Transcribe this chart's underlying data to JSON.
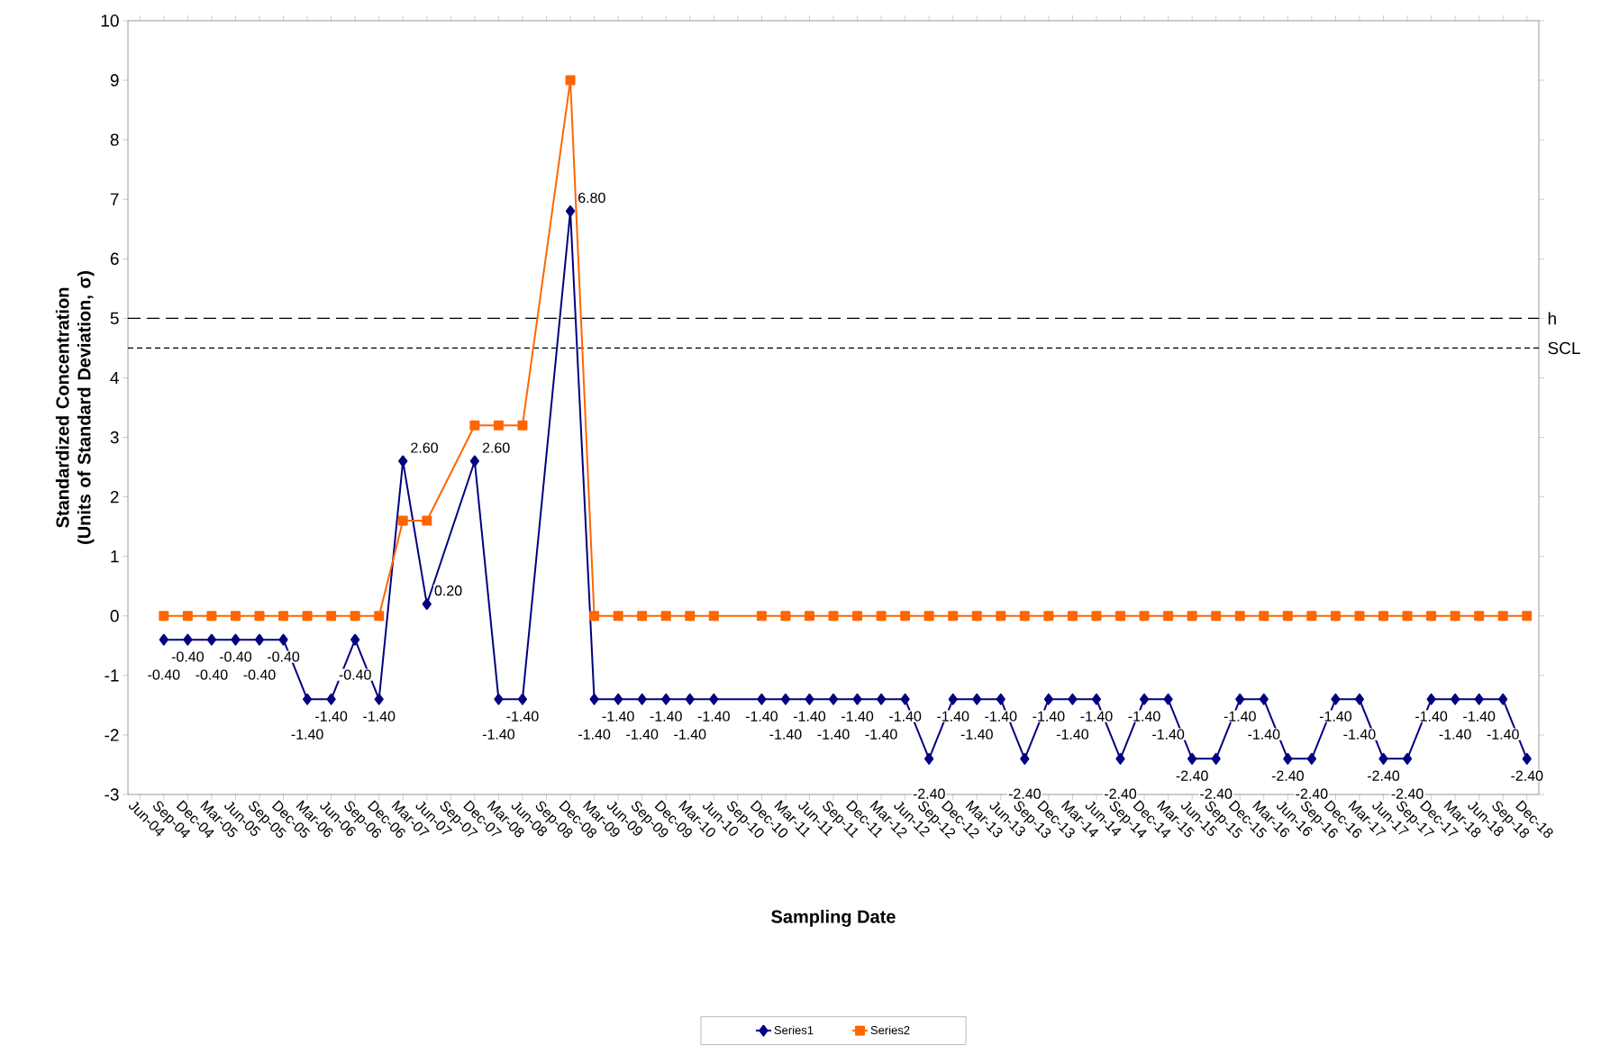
{
  "chart_data": {
    "type": "line",
    "xlabel": "Sampling Date",
    "ylabel": "Standardized Concentration (Units of Standard Deviation, σ)",
    "categories": [
      "Jun-04",
      "Sep-04",
      "Dec-04",
      "Mar-05",
      "Jun-05",
      "Sep-05",
      "Dec-05",
      "Mar-06",
      "Jun-06",
      "Sep-06",
      "Dec-06",
      "Mar-07",
      "Jun-07",
      "Sep-07",
      "Dec-07",
      "Mar-08",
      "Jun-08",
      "Sep-08",
      "Dec-08",
      "Mar-09",
      "Jun-09",
      "Sep-09",
      "Dec-09",
      "Mar-10",
      "Jun-10",
      "Sep-10",
      "Dec-10",
      "Mar-11",
      "Jun-11",
      "Sep-11",
      "Dec-11",
      "Mar-12",
      "Jun-12",
      "Sep-12",
      "Dec-12",
      "Mar-13",
      "Jun-13",
      "Sep-13",
      "Dec-13",
      "Mar-14",
      "Jun-14",
      "Sep-14",
      "Dec-14",
      "Mar-15",
      "Jun-15",
      "Sep-15",
      "Dec-15",
      "Mar-16",
      "Jun-16",
      "Sep-16",
      "Dec-16",
      "Mar-17",
      "Jun-17",
      "Sep-17",
      "Dec-17",
      "Mar-18",
      "Jun-18",
      "Sep-18",
      "Dec-18"
    ],
    "series": [
      {
        "name": "Series1",
        "color": "#000080",
        "marker": "diamond",
        "values": [
          null,
          -0.4,
          -0.4,
          -0.4,
          -0.4,
          -0.4,
          -0.4,
          -1.4,
          -1.4,
          -0.4,
          -1.4,
          2.6,
          0.2,
          null,
          2.6,
          -1.4,
          -1.4,
          null,
          6.8,
          -1.4,
          -1.4,
          -1.4,
          -1.4,
          -1.4,
          -1.4,
          null,
          -1.4,
          -1.4,
          -1.4,
          -1.4,
          -1.4,
          -1.4,
          -1.4,
          -2.4,
          -1.4,
          -1.4,
          -1.4,
          -2.4,
          -1.4,
          -1.4,
          -1.4,
          -2.4,
          -1.4,
          -1.4,
          -2.4,
          -2.4,
          -1.4,
          -1.4,
          -2.4,
          -2.4,
          -1.4,
          -1.4,
          -2.4,
          -2.4,
          -1.4,
          -1.4,
          -1.4,
          -1.4,
          -2.4
        ],
        "value_labels": [
          null,
          "-0.40",
          "-0.40",
          "-0.40",
          "-0.40",
          "-0.40",
          "-0.40",
          "-1.40",
          "-1.40",
          "-0.40",
          "-1.40",
          "2.60",
          "0.20",
          null,
          "2.60",
          "-1.40",
          "-1.40",
          null,
          "6.80",
          "-1.40",
          "-1.40",
          "-1.40",
          "-1.40",
          "-1.40",
          "-1.40",
          null,
          "-1.40",
          "-1.40",
          "-1.40",
          "-1.40",
          "-1.40",
          "-1.40",
          "-1.40",
          "-2.40",
          "-1.40",
          "-1.40",
          "-1.40",
          "-2.40",
          "-1.40",
          "-1.40",
          "-1.40",
          "-2.40",
          "-1.40",
          "-1.40",
          "-2.40",
          "-2.40",
          "-1.40",
          "-1.40",
          "-2.40",
          "-2.40",
          "-1.40",
          "-1.40",
          "-2.40",
          "-2.40",
          "-1.40",
          "-1.40",
          "-1.40",
          "-1.40",
          "-2.40"
        ]
      },
      {
        "name": "Series2",
        "color": "#ff6600",
        "marker": "square",
        "values": [
          null,
          0,
          0,
          0,
          0,
          0,
          0,
          0,
          0,
          0,
          0,
          1.6,
          1.6,
          null,
          3.2,
          3.2,
          3.2,
          null,
          9,
          0,
          0,
          0,
          0,
          0,
          0,
          null,
          0,
          0,
          0,
          0,
          0,
          0,
          0,
          0,
          0,
          0,
          0,
          0,
          0,
          0,
          0,
          0,
          0,
          0,
          0,
          0,
          0,
          0,
          0,
          0,
          0,
          0,
          0,
          0,
          0,
          0,
          0,
          0,
          0
        ]
      }
    ],
    "ylim": [
      -3,
      10
    ],
    "yticks": [
      -3,
      -2,
      -1,
      0,
      1,
      2,
      3,
      4,
      5,
      6,
      7,
      8,
      9,
      10
    ],
    "ref_lines": [
      {
        "axis": "y",
        "value": 5,
        "label": "h",
        "color": "#000000",
        "line_style": "dashed"
      },
      {
        "axis": "y",
        "value": 4.5,
        "label": "SCL",
        "color": "#000000",
        "line_style": "dotted"
      }
    ],
    "legend": "bottom"
  }
}
